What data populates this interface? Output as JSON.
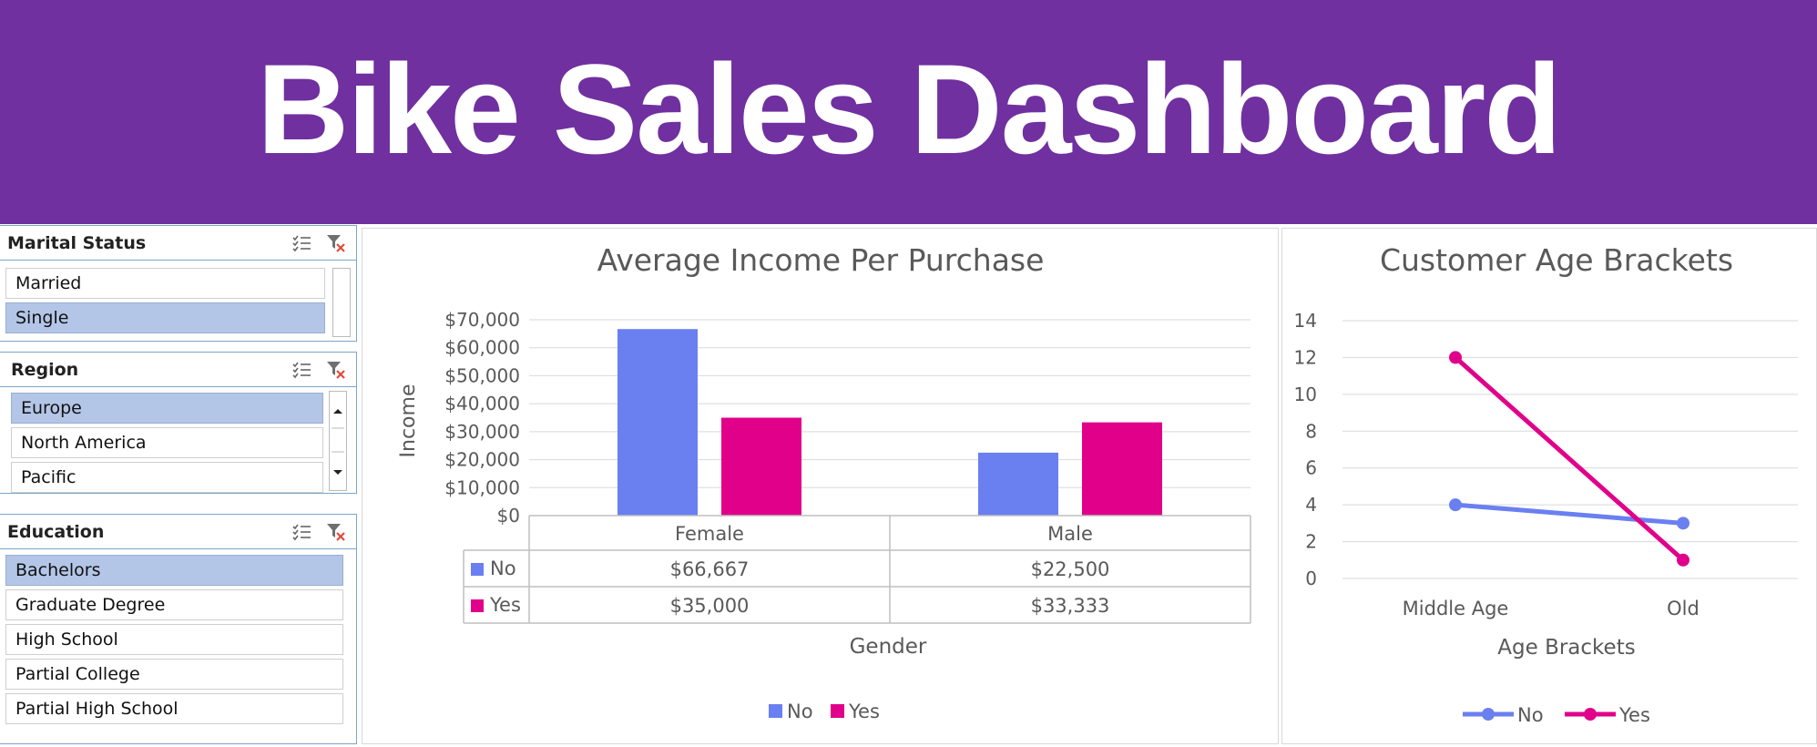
{
  "banner": {
    "title": "Bike Sales Dashboard"
  },
  "slicers": {
    "marital": {
      "title": "Marital Status",
      "items": [
        {
          "label": "Married",
          "selected": false
        },
        {
          "label": "Single",
          "selected": true
        }
      ]
    },
    "region": {
      "title": "Region",
      "items": [
        {
          "label": "Europe",
          "selected": true
        },
        {
          "label": "North America",
          "selected": false
        },
        {
          "label": "Pacific",
          "selected": false
        }
      ]
    },
    "education": {
      "title": "Education",
      "items": [
        {
          "label": "Bachelors",
          "selected": true
        },
        {
          "label": "Graduate Degree",
          "selected": false
        },
        {
          "label": "High School",
          "selected": false
        },
        {
          "label": "Partial College",
          "selected": false
        },
        {
          "label": "Partial High School",
          "selected": false
        }
      ]
    },
    "icons": {
      "multiselect": "multi-select-icon",
      "clear": "clear-filter-icon"
    }
  },
  "chart_data": [
    {
      "type": "bar",
      "title": "Average Income Per Purchase",
      "xlabel": "Gender",
      "ylabel": "Income",
      "categories": [
        "Female",
        "Male"
      ],
      "series": [
        {
          "name": "No",
          "values": [
            66667,
            22500
          ],
          "labels": [
            "$66,667",
            "$22,500"
          ],
          "color": "#6a7ff0"
        },
        {
          "name": "Yes",
          "values": [
            35000,
            33333
          ],
          "labels": [
            "$35,000",
            "$33,333"
          ],
          "color": "#e0008a"
        }
      ],
      "ylim": [
        0,
        70000
      ],
      "yticks": [
        0,
        10000,
        20000,
        30000,
        40000,
        50000,
        60000,
        70000
      ],
      "ytick_labels": [
        "$0",
        "$10,000",
        "$20,000",
        "$30,000",
        "$40,000",
        "$50,000",
        "$60,000",
        "$70,000"
      ],
      "grid": true,
      "data_table": true,
      "legend": "bottom"
    },
    {
      "type": "line",
      "title": "Customer Age Brackets",
      "xlabel": "Age Brackets",
      "ylabel": "",
      "categories": [
        "Middle Age",
        "Old"
      ],
      "series": [
        {
          "name": "No",
          "values": [
            4,
            3
          ],
          "color": "#6a7ff0"
        },
        {
          "name": "Yes",
          "values": [
            12,
            1
          ],
          "color": "#e0008a"
        }
      ],
      "ylim": [
        0,
        14
      ],
      "yticks": [
        0,
        2,
        4,
        6,
        8,
        10,
        12,
        14
      ],
      "ytick_labels": [
        "0",
        "2",
        "4",
        "6",
        "8",
        "10",
        "12",
        "14"
      ],
      "grid": true,
      "legend": "bottom"
    }
  ]
}
